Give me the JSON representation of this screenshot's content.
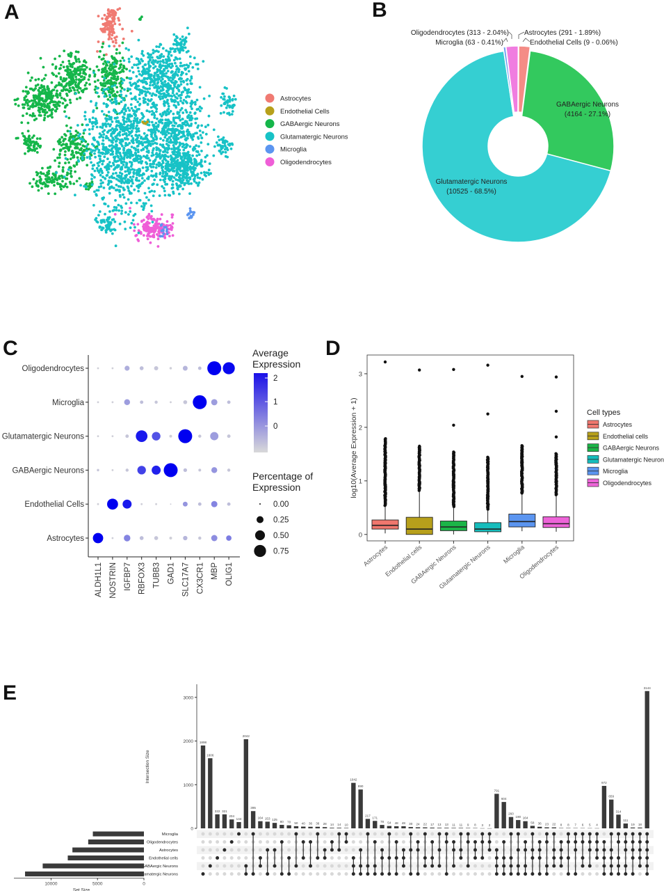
{
  "panels": {
    "a": "A",
    "b": "B",
    "c": "C",
    "d": "D",
    "e": "E"
  },
  "chart_data": [
    {
      "id": "A",
      "type": "scatter",
      "title": "",
      "legend_position": "right",
      "categories": [
        "Astrocytes",
        "Endothelial Cells",
        "GABAergic Neurons",
        "Glutamatergic Neurons",
        "Microglia",
        "Oligodendrocytes"
      ],
      "colors": [
        "#f07a72",
        "#b7a01b",
        "#15b64a",
        "#17c2c6",
        "#5b95f0",
        "#ef5ed7"
      ],
      "clusters": [
        {
          "cat": 0,
          "cx": 15.5,
          "cy": 3.2,
          "rx": 1.6,
          "ry": 2.2,
          "n": 90
        },
        {
          "cat": 0,
          "cx": 15.8,
          "cy": 0.9,
          "rx": 1.0,
          "ry": 0.8,
          "n": 30
        },
        {
          "cat": 5,
          "cx": 22.5,
          "cy": 33.5,
          "rx": 2.6,
          "ry": 1.6,
          "n": 160
        },
        {
          "cat": 4,
          "cx": 27.9,
          "cy": 31.5,
          "rx": 0.5,
          "ry": 0.7,
          "n": 14
        },
        {
          "cat": 4,
          "cx": 23.7,
          "cy": 33.7,
          "rx": 1.0,
          "ry": 0.9,
          "n": 14
        },
        {
          "cat": 2,
          "cx": 5.5,
          "cy": 14.0,
          "rx": 3.2,
          "ry": 2.8,
          "n": 260
        },
        {
          "cat": 2,
          "cx": 10.0,
          "cy": 10.5,
          "rx": 2.3,
          "ry": 3.0,
          "n": 200
        },
        {
          "cat": 2,
          "cx": 15.8,
          "cy": 10.6,
          "rx": 2.0,
          "ry": 3.5,
          "n": 200
        },
        {
          "cat": 2,
          "cx": 3.5,
          "cy": 20.6,
          "rx": 1.3,
          "ry": 1.2,
          "n": 70
        },
        {
          "cat": 2,
          "cx": 10.2,
          "cy": 21.3,
          "rx": 2.3,
          "ry": 2.8,
          "n": 150
        },
        {
          "cat": 2,
          "cx": 6.8,
          "cy": 26.2,
          "rx": 2.6,
          "ry": 1.7,
          "n": 110
        },
        {
          "cat": 2,
          "cx": 12.6,
          "cy": 27.0,
          "rx": 0.6,
          "ry": 0.6,
          "n": 15
        },
        {
          "cat": 2,
          "cx": 20.1,
          "cy": 1.9,
          "rx": 0.4,
          "ry": 0.4,
          "n": 4
        },
        {
          "cat": 3,
          "cx": 18.0,
          "cy": 21.5,
          "rx": 6.0,
          "ry": 8.0,
          "n": 950
        },
        {
          "cat": 3,
          "cx": 23.0,
          "cy": 10.5,
          "rx": 4.6,
          "ry": 4.4,
          "n": 450
        },
        {
          "cat": 3,
          "cx": 25.8,
          "cy": 19.0,
          "rx": 3.5,
          "ry": 5.5,
          "n": 380
        },
        {
          "cat": 3,
          "cx": 26.5,
          "cy": 24.5,
          "rx": 3.3,
          "ry": 3.0,
          "n": 300
        },
        {
          "cat": 3,
          "cx": 26.2,
          "cy": 5.7,
          "rx": 1.2,
          "ry": 1.2,
          "n": 45
        },
        {
          "cat": 3,
          "cx": 33.5,
          "cy": 14.4,
          "rx": 0.9,
          "ry": 1.6,
          "n": 40
        },
        {
          "cat": 3,
          "cx": 32.7,
          "cy": 21.0,
          "rx": 1.2,
          "ry": 1.4,
          "n": 45
        },
        {
          "cat": 3,
          "cx": 15.0,
          "cy": 33.0,
          "rx": 1.2,
          "ry": 1.5,
          "n": 55
        },
        {
          "cat": 1,
          "cx": 21.0,
          "cy": 17.6,
          "rx": 0.8,
          "ry": 0.4,
          "n": 5
        }
      ]
    },
    {
      "id": "B",
      "type": "pie",
      "title": "",
      "categories": [
        "Astrocytes",
        "Endothelial Cells",
        "GABAergic Neurons",
        "Glutamatergic Neurons",
        "Microglia",
        "Oligodendrocytes"
      ],
      "values": [
        291,
        9,
        4164,
        10525,
        63,
        313
      ],
      "colors": [
        "#f48c86",
        "#b59a1a",
        "#33c95e",
        "#35cfd2",
        "#6b9df2",
        "#f07de0"
      ],
      "labels": [
        "Astrocytes (291 - 1.89%)",
        "Endothelial Cells (9 - 0.06%)",
        "GABAergic Neurons",
        "(4164 - 27.1%)",
        "Glutamatergic Neurons",
        "(10525 - 68.5%)",
        "Microglia (63 - 0.41%)",
        "Oligodendrocytes (313 - 2.04%)"
      ]
    },
    {
      "id": "C",
      "type": "scatter",
      "subtype": "dotplot",
      "title": "",
      "genes": [
        "ALDH1L1",
        "NOSTRIN",
        "IGFBP7",
        "RBFOX3",
        "TUBB3",
        "GAD1",
        "SLC17A7",
        "CX3CR1",
        "MBP",
        "OLIG1"
      ],
      "cell_types": [
        "Astrocytes",
        "Endothelial Cells",
        "GABAergic Neurons",
        "Glutamatergic Neurons",
        "Microglia",
        "Oligodendrocytes"
      ],
      "avg_expression": [
        [
          2.0,
          -0.5,
          0.4,
          -0.3,
          -0.4,
          -0.5,
          -0.2,
          -0.4,
          0.3,
          0.5
        ],
        [
          -0.5,
          2.0,
          1.7,
          -0.5,
          -0.5,
          -0.5,
          0.2,
          -0.3,
          0.4,
          -0.3
        ],
        [
          -0.4,
          -0.5,
          -0.4,
          1.2,
          1.6,
          2.0,
          -0.3,
          -0.4,
          0.2,
          -0.4
        ],
        [
          -0.5,
          -0.5,
          -0.4,
          1.7,
          1.0,
          -0.5,
          2.0,
          -0.4,
          0.1,
          -0.4
        ],
        [
          -0.5,
          -0.5,
          0.1,
          -0.3,
          -0.4,
          -0.5,
          -0.4,
          2.0,
          0.1,
          -0.3
        ],
        [
          -0.5,
          -0.5,
          -0.1,
          -0.3,
          -0.4,
          -0.5,
          -0.2,
          -0.3,
          2.0,
          1.9
        ]
      ],
      "pct_expression": [
        [
          0.55,
          0.02,
          0.22,
          0.08,
          0.08,
          0.04,
          0.1,
          0.05,
          0.2,
          0.15
        ],
        [
          0.02,
          0.62,
          0.42,
          0.02,
          0.02,
          0.01,
          0.12,
          0.06,
          0.2,
          0.06
        ],
        [
          0.03,
          0.02,
          0.05,
          0.38,
          0.42,
          1.0,
          0.07,
          0.04,
          0.18,
          0.05
        ],
        [
          0.02,
          0.02,
          0.06,
          0.7,
          0.38,
          0.04,
          1.0,
          0.05,
          0.35,
          0.06
        ],
        [
          0.02,
          0.02,
          0.18,
          0.06,
          0.05,
          0.02,
          0.08,
          1.0,
          0.2,
          0.06
        ],
        [
          0.02,
          0.02,
          0.13,
          0.08,
          0.09,
          0.03,
          0.12,
          0.06,
          1.0,
          0.75
        ]
      ],
      "color_legend_title": [
        "Average",
        "Expression"
      ],
      "color_ticks": [
        "2",
        "1",
        "0"
      ],
      "size_legend_title": [
        "Percentage of",
        "Expression"
      ],
      "size_ticks": [
        "0.00",
        "0.25",
        "0.50",
        "0.75"
      ]
    },
    {
      "id": "D",
      "type": "bar",
      "subtype": "boxplot",
      "title": "",
      "ylabel": "log10(Average Expression + 1)",
      "ylim": [
        0,
        3.3
      ],
      "yticks": [
        "0",
        "1",
        "2",
        "3"
      ],
      "categories": [
        "Astrocytes",
        "Endothelial cells",
        "GABAergic Neurons",
        "Glutamatergic Neurons",
        "Microglia",
        "Oligodendrocytes"
      ],
      "colors": [
        "#f0776e",
        "#b7a01b",
        "#1bb548",
        "#16bdbc",
        "#5b95f0",
        "#ed64d8"
      ],
      "boxes": [
        {
          "q1": 0.1,
          "median": 0.17,
          "q3": 0.27,
          "whisker_high": 0.52,
          "outliers_to": 1.8,
          "extreme": [
            3.22
          ]
        },
        {
          "q1": 0.0,
          "median": 0.1,
          "q3": 0.32,
          "whisker_high": 0.8,
          "outliers_to": 1.65,
          "extreme": [
            3.07
          ]
        },
        {
          "q1": 0.07,
          "median": 0.14,
          "q3": 0.25,
          "whisker_high": 0.5,
          "outliers_to": 1.55,
          "extreme": [
            2.04,
            3.08
          ]
        },
        {
          "q1": 0.05,
          "median": 0.1,
          "q3": 0.22,
          "whisker_high": 0.45,
          "outliers_to": 1.45,
          "extreme": [
            2.25,
            3.16
          ]
        },
        {
          "q1": 0.14,
          "median": 0.24,
          "q3": 0.38,
          "whisker_high": 0.75,
          "outliers_to": 1.67,
          "extreme": [
            2.95
          ]
        },
        {
          "q1": 0.13,
          "median": 0.2,
          "q3": 0.33,
          "whisker_high": 0.72,
          "outliers_to": 1.52,
          "extreme": [
            1.82,
            2.3,
            2.94
          ]
        }
      ],
      "legend_title": "Cell types",
      "legend_entries": [
        "Astrocytes",
        "Endothelial cells",
        "GABAergic Neurons",
        "Glutamatergic Neurons",
        "Microglia",
        "Oligodendrocytes"
      ]
    },
    {
      "id": "E",
      "type": "bar",
      "subtype": "upset",
      "title": "",
      "ylabel": "Intersection Size",
      "xlabel_sets": "Set Size",
      "ylim": [
        0,
        3300
      ],
      "yticks": [
        "0",
        "1000",
        "2000",
        "3000"
      ],
      "set_ticks": [
        "10000",
        "5000",
        "0"
      ],
      "sets": [
        "Microglia",
        "Oligodendrocytes",
        "Astrocytes",
        "Endothelial cells",
        "GABAergic Neurons",
        "Glutamatergic Neurons"
      ],
      "set_sizes": [
        5500,
        6000,
        7700,
        8200,
        10900,
        12800
      ],
      "intersections": [
        1898,
        1606,
        322,
        321,
        204,
        144,
        2042,
        395,
        164,
        153,
        125,
        80,
        70,
        50,
        40,
        36,
        36,
        28,
        14,
        14,
        10,
        1042,
        890,
        217,
        171,
        78,
        54,
        48,
        48,
        30,
        24,
        22,
        17,
        13,
        13,
        11,
        11,
        9,
        8,
        3,
        2,
        791,
        604,
        260,
        190,
        164,
        58,
        36,
        23,
        22,
        8,
        8,
        7,
        6,
        5,
        4,
        972,
        659,
        314,
        111,
        19,
        18,
        3144
      ],
      "intersection_labels": [
        "1898",
        "1606",
        "322",
        "321",
        "204",
        "144",
        "2042",
        "395",
        "164",
        "153",
        "125",
        "80",
        "70",
        "50",
        "40",
        "36",
        "36",
        "28",
        "14",
        "14",
        "10",
        "1042",
        "890",
        "217",
        "171",
        "78",
        "54",
        "48",
        "48",
        "30",
        "24",
        "22",
        "17",
        "13",
        "13",
        "11",
        "11",
        "9",
        "8",
        "3",
        "2",
        "791",
        "604",
        "260",
        "190",
        "164",
        "58",
        "36",
        "23",
        "22",
        "8",
        "8",
        "7",
        "6",
        "5",
        "4",
        "972",
        "659",
        "314",
        "111",
        "19",
        "18",
        "3144"
      ],
      "membership": [
        [
          5
        ],
        [
          4
        ],
        [
          3
        ],
        [
          2
        ],
        [
          1
        ],
        [
          0
        ],
        [
          4,
          5
        ],
        [
          0,
          5
        ],
        [
          3,
          4
        ],
        [
          2,
          5
        ],
        [
          2,
          4
        ],
        [
          1,
          5
        ],
        [
          3,
          5
        ],
        [
          0,
          4
        ],
        [
          1,
          3
        ],
        [
          1,
          4
        ],
        [
          0,
          3
        ],
        [
          2,
          3
        ],
        [
          1,
          2
        ],
        [
          0,
          2
        ],
        [
          0,
          1
        ],
        [
          3,
          4,
          5
        ],
        [
          2,
          4,
          5
        ],
        [
          0,
          4,
          5
        ],
        [
          1,
          4,
          5
        ],
        [
          2,
          3,
          5
        ],
        [
          0,
          3,
          5
        ],
        [
          1,
          3,
          5
        ],
        [
          2,
          3,
          4
        ],
        [
          0,
          2,
          5
        ],
        [
          1,
          2,
          5
        ],
        [
          0,
          3,
          4
        ],
        [
          1,
          3,
          4
        ],
        [
          0,
          2,
          4
        ],
        [
          0,
          1,
          5
        ],
        [
          1,
          2,
          4
        ],
        [
          0,
          2,
          3
        ],
        [
          0,
          1,
          4
        ],
        [
          1,
          2,
          3
        ],
        [
          0,
          1,
          3
        ],
        [
          0,
          1,
          2
        ],
        [
          2,
          3,
          4,
          5
        ],
        [
          1,
          3,
          4,
          5
        ],
        [
          0,
          3,
          4,
          5
        ],
        [
          0,
          2,
          4,
          5
        ],
        [
          1,
          2,
          4,
          5
        ],
        [
          0,
          2,
          3,
          5
        ],
        [
          1,
          2,
          3,
          5
        ],
        [
          0,
          1,
          4,
          5
        ],
        [
          0,
          2,
          3,
          4
        ],
        [
          1,
          2,
          3,
          4
        ],
        [
          0,
          1,
          3,
          5
        ],
        [
          0,
          1,
          2,
          5
        ],
        [
          0,
          1,
          3,
          4
        ],
        [
          0,
          1,
          2,
          4
        ],
        [
          0,
          1,
          2,
          3
        ],
        [
          1,
          2,
          3,
          4,
          5
        ],
        [
          0,
          2,
          3,
          4,
          5
        ],
        [
          0,
          1,
          3,
          4,
          5
        ],
        [
          0,
          1,
          2,
          4,
          5
        ],
        [
          0,
          1,
          2,
          3,
          5
        ],
        [
          0,
          1,
          2,
          3,
          4
        ],
        [
          0,
          1,
          2,
          3,
          4,
          5
        ]
      ]
    }
  ]
}
